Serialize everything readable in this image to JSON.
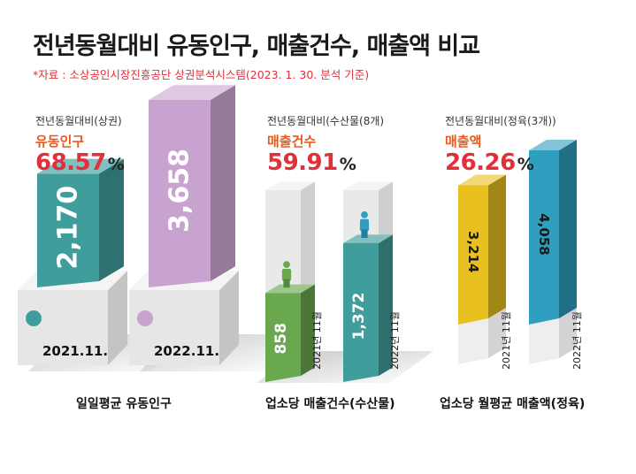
{
  "title": "전년동월대비 유동인구, 매출건수, 매출액 비교",
  "source": "*자료 : 소상공인시장진흥공단 상권분석시스템(2023. 1. 30. 분석 기준)",
  "colors": {
    "accent_red": "#e0303a",
    "accent_orange": "#e85a1c",
    "teal": "#3f9e9c",
    "lavender": "#c9a3cf",
    "green": "#6aa84f",
    "yellow": "#e8c020",
    "blue": "#2f9fbf"
  },
  "panels": [
    {
      "comparison": "전년동월대비(상권)",
      "metric": "유동인구",
      "percent": "68.57",
      "unit": "%",
      "caption": "일일평균 유동인구"
    },
    {
      "comparison": "전년동월대비(수산물(8개)",
      "metric": "매출건수",
      "percent": "59.91",
      "unit": "%",
      "caption": "업소당 매출건수(수산물)"
    },
    {
      "comparison": "전년동월대비(정육(3개))",
      "metric": "매출액",
      "percent": "26.26",
      "unit": "%",
      "caption": "업소당 월평균 매출액(정육)"
    }
  ],
  "chart_data": [
    {
      "type": "bar",
      "title": "유동인구",
      "categories": [
        "2021.11.",
        "2022.11."
      ],
      "values": [
        2170,
        3658
      ],
      "value_labels": [
        "2,170",
        "3,658"
      ],
      "icons": [
        "person-icon",
        "person-icon"
      ]
    },
    {
      "type": "bar",
      "title": "매출건수",
      "categories": [
        "2021년 11월",
        "2022년 11월"
      ],
      "values": [
        858,
        1372
      ],
      "value_labels": [
        "858",
        "1,372"
      ]
    },
    {
      "type": "bar",
      "title": "매출액",
      "categories": [
        "2021년 11월",
        "2022년 11월"
      ],
      "values": [
        3214,
        4058
      ],
      "value_labels": [
        "3,214",
        "4,058"
      ]
    }
  ]
}
